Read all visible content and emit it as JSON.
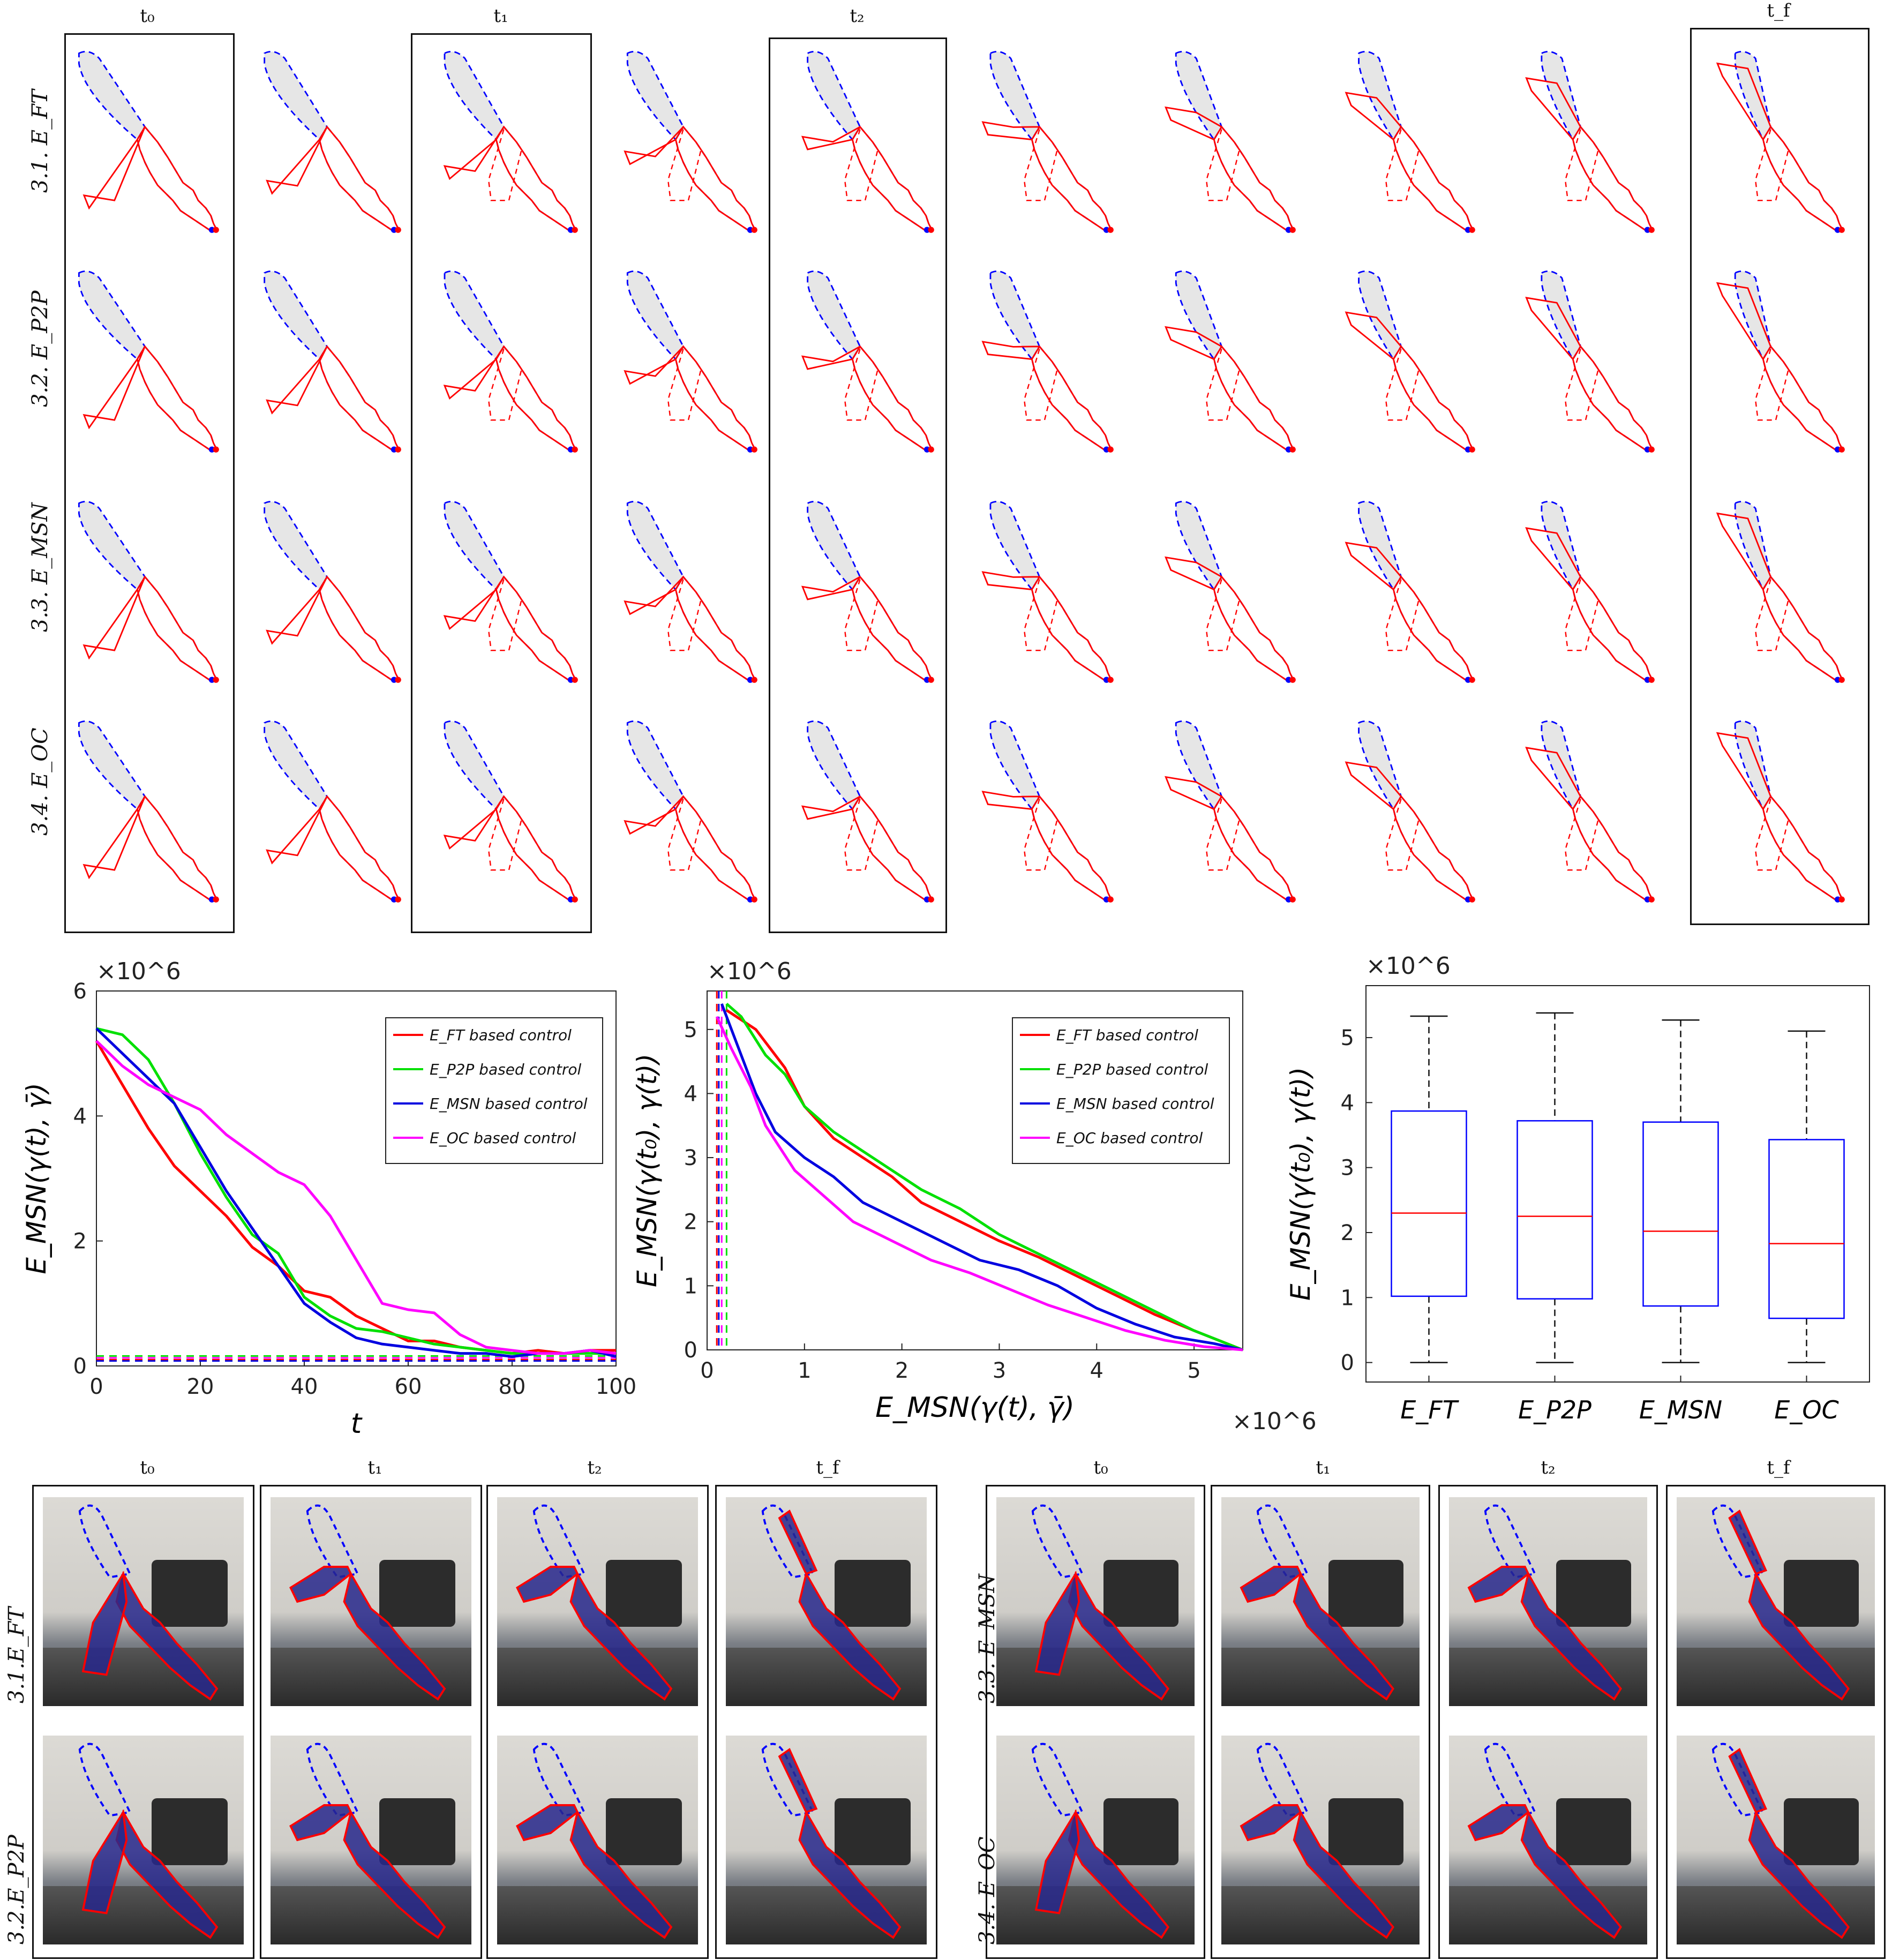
{
  "sim_grid": {
    "col_labels": [
      "t₀",
      "t₁",
      "t₂",
      "t_f"
    ],
    "row_labels": [
      "3.1. E_FT",
      "3.2. E_P2P",
      "3.3. E_MSN",
      "3.4. E_OC"
    ]
  },
  "chart_data": [
    {
      "type": "line",
      "title": "",
      "xlabel": "t",
      "ylabel": "E_MSN(γ(t), γ̄)",
      "y_multiplier": "×10^6",
      "xlim": [
        0,
        100
      ],
      "ylim": [
        0,
        6
      ],
      "xticks": [
        "0",
        "20",
        "40",
        "60",
        "80",
        "100"
      ],
      "yticks": [
        "0",
        "2",
        "4",
        "6"
      ],
      "legend": "top-right",
      "series": [
        {
          "name": "E_FT  based control",
          "color": "#ff0000",
          "x": [
            0,
            5,
            10,
            15,
            20,
            25,
            30,
            35,
            40,
            45,
            50,
            55,
            60,
            65,
            70,
            75,
            80,
            85,
            90,
            95,
            100
          ],
          "y": [
            5.2,
            4.5,
            3.8,
            3.2,
            2.8,
            2.4,
            1.9,
            1.6,
            1.2,
            1.1,
            0.8,
            0.6,
            0.4,
            0.4,
            0.3,
            0.25,
            0.2,
            0.25,
            0.2,
            0.25,
            0.25
          ]
        },
        {
          "name": "E_P2P based control",
          "color": "#00e000",
          "x": [
            0,
            5,
            10,
            15,
            20,
            25,
            30,
            35,
            40,
            45,
            50,
            55,
            60,
            65,
            70,
            75,
            80,
            85,
            90,
            95,
            100
          ],
          "y": [
            5.4,
            5.3,
            4.9,
            4.2,
            3.4,
            2.7,
            2.1,
            1.8,
            1.1,
            0.8,
            0.6,
            0.55,
            0.45,
            0.35,
            0.3,
            0.25,
            0.2,
            0.2,
            0.2,
            0.2,
            0.2
          ]
        },
        {
          "name": "E_MSN based control",
          "color": "#0000e0",
          "x": [
            0,
            5,
            10,
            15,
            20,
            25,
            30,
            35,
            40,
            45,
            50,
            55,
            60,
            65,
            70,
            75,
            80,
            85,
            90,
            95,
            100
          ],
          "y": [
            5.4,
            5.0,
            4.6,
            4.2,
            3.5,
            2.8,
            2.2,
            1.6,
            1.0,
            0.7,
            0.45,
            0.35,
            0.3,
            0.25,
            0.2,
            0.2,
            0.15,
            0.2,
            0.2,
            0.25,
            0.15
          ]
        },
        {
          "name": "E_OC based control",
          "color": "#ff00ff",
          "x": [
            0,
            5,
            10,
            15,
            20,
            25,
            30,
            35,
            40,
            45,
            50,
            55,
            60,
            65,
            70,
            75,
            80,
            85,
            90,
            95,
            100
          ],
          "y": [
            5.2,
            4.8,
            4.5,
            4.3,
            4.1,
            3.7,
            3.4,
            3.1,
            2.9,
            2.4,
            1.7,
            1.0,
            0.9,
            0.85,
            0.5,
            0.3,
            0.25,
            0.2,
            0.2,
            0.25,
            0.2
          ]
        }
      ],
      "reference_lines": [
        {
          "name": "E_FT threshold",
          "color": "#ff0000",
          "y": 0.1
        },
        {
          "name": "E_P2P threshold",
          "color": "#00e000",
          "y": 0.16
        },
        {
          "name": "E_MSN threshold",
          "color": "#0000e0",
          "y": 0.08
        },
        {
          "name": "E_OC threshold",
          "color": "#ff00ff",
          "y": 0.13
        }
      ]
    },
    {
      "type": "line",
      "title": "",
      "xlabel": "E_MSN(γ(t), γ̄)",
      "ylabel": "E_MSN(γ(t₀), γ(t))",
      "x_multiplier": "×10^6",
      "y_multiplier": "×10^6",
      "xlim": [
        0,
        5.5
      ],
      "ylim": [
        0,
        5.6
      ],
      "xticks": [
        "0",
        "1",
        "2",
        "3",
        "4",
        "5"
      ],
      "yticks": [
        "0",
        "1",
        "2",
        "3",
        "4",
        "5"
      ],
      "legend": "top-right",
      "series": [
        {
          "name": "E_FT  based control",
          "color": "#ff0000",
          "x": [
            0.2,
            0.3,
            0.5,
            0.8,
            1.0,
            1.3,
            1.6,
            1.9,
            2.2,
            2.6,
            3.0,
            3.4,
            3.8,
            4.2,
            4.6,
            5.0,
            5.5
          ],
          "y": [
            5.3,
            5.2,
            5.0,
            4.4,
            3.8,
            3.3,
            3.0,
            2.7,
            2.3,
            2.0,
            1.7,
            1.45,
            1.15,
            0.85,
            0.55,
            0.3,
            0.0
          ]
        },
        {
          "name": "E_P2P based control",
          "color": "#00e000",
          "x": [
            0.2,
            0.35,
            0.6,
            0.8,
            1.0,
            1.3,
            1.6,
            1.9,
            2.2,
            2.6,
            3.0,
            3.4,
            3.8,
            4.2,
            4.6,
            5.0,
            5.5
          ],
          "y": [
            5.4,
            5.2,
            4.6,
            4.3,
            3.8,
            3.4,
            3.1,
            2.8,
            2.5,
            2.2,
            1.8,
            1.5,
            1.2,
            0.9,
            0.6,
            0.3,
            0.0
          ]
        },
        {
          "name": "E_MSN based control",
          "color": "#0000e0",
          "x": [
            0.15,
            0.3,
            0.5,
            0.7,
            1.0,
            1.3,
            1.6,
            2.0,
            2.4,
            2.8,
            3.2,
            3.6,
            4.0,
            4.4,
            4.8,
            5.2,
            5.5
          ],
          "y": [
            5.4,
            4.8,
            4.0,
            3.4,
            3.0,
            2.7,
            2.3,
            2.0,
            1.7,
            1.4,
            1.25,
            1.0,
            0.65,
            0.4,
            0.2,
            0.1,
            0.0
          ]
        },
        {
          "name": "E_OC based control",
          "color": "#ff00ff",
          "x": [
            0.1,
            0.25,
            0.45,
            0.6,
            0.9,
            1.2,
            1.5,
            1.9,
            2.3,
            2.7,
            3.1,
            3.5,
            3.9,
            4.3,
            4.7,
            5.1,
            5.5
          ],
          "y": [
            5.2,
            4.7,
            4.1,
            3.5,
            2.8,
            2.4,
            2.0,
            1.7,
            1.4,
            1.2,
            0.95,
            0.7,
            0.5,
            0.3,
            0.15,
            0.05,
            0.0
          ]
        }
      ],
      "reference_lines": [
        {
          "name": "E_FT threshold",
          "color": "#ff0000",
          "x": 0.1
        },
        {
          "name": "E_P2P threshold",
          "color": "#00e000",
          "x": 0.2
        },
        {
          "name": "E_MSN threshold",
          "color": "#0000e0",
          "x": 0.12
        },
        {
          "name": "E_OC threshold",
          "color": "#ff00ff",
          "x": 0.15
        }
      ]
    },
    {
      "type": "box",
      "title": "",
      "xlabel": "",
      "ylabel": "E_MSN(γ(t₀), γ(t))",
      "y_multiplier": "×10^6",
      "ylim": [
        -0.3,
        5.8
      ],
      "yticks": [
        "0",
        "1",
        "2",
        "3",
        "4",
        "5"
      ],
      "categories": [
        "E_FT",
        "E_P2P",
        "E_MSN",
        "E_OC"
      ],
      "boxes": [
        {
          "min": 0.0,
          "q1": 1.02,
          "median": 2.3,
          "q3": 3.87,
          "max": 5.33
        },
        {
          "min": 0.0,
          "q1": 0.98,
          "median": 2.25,
          "q3": 3.72,
          "max": 5.38
        },
        {
          "min": 0.0,
          "q1": 0.87,
          "median": 2.02,
          "q3": 3.7,
          "max": 5.27
        },
        {
          "min": 0.0,
          "q1": 0.68,
          "median": 1.83,
          "q3": 3.43,
          "max": 5.1
        }
      ]
    }
  ],
  "photos": {
    "group1": {
      "col_labels": [
        "t₀",
        "t₁",
        "t₂",
        "t_f"
      ],
      "row_labels": [
        "3.1.E_FT",
        "3.2.E_P2P"
      ]
    },
    "group2": {
      "col_labels": [
        "t₀",
        "t₁",
        "t₂",
        "t_f"
      ],
      "row_labels": [
        "3.3. E_MSN",
        "3.4. E_OC"
      ]
    }
  }
}
